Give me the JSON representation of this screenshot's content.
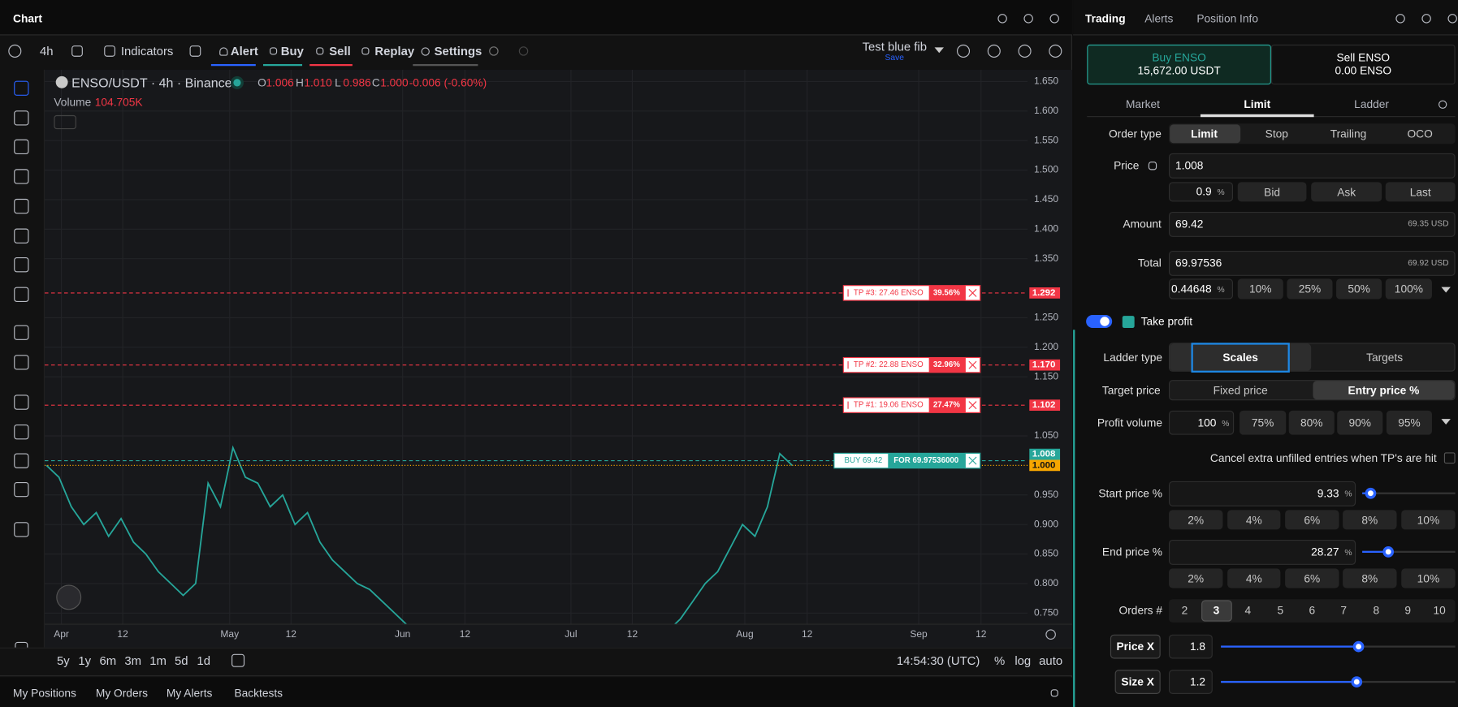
{
  "header": {
    "title": "Chart"
  },
  "toolbar": {
    "interval": "4h",
    "indicators": "Indicators",
    "alert": "Alert",
    "buy": "Buy",
    "sell": "Sell",
    "replay": "Replay",
    "settings": "Settings",
    "layout_name": "Test blue fib",
    "save": "Save"
  },
  "legend": {
    "symbol": "ENSO/USDT · 4h · Binance",
    "ohlc": [
      {
        "key": "O",
        "value": "1.006"
      },
      {
        "key": "H",
        "value": "1.010"
      },
      {
        "key": "L",
        "value": "0.986"
      },
      {
        "key": "C",
        "value": "1.000"
      }
    ],
    "change": "-0.006 (-0.60%)",
    "volume_label": "Volume",
    "volume_value": "104.705K"
  },
  "chart": {
    "ylim": [
      0.709,
      1.67
    ],
    "yticks": [
      {
        "value": 1.65,
        "label": "1.650"
      },
      {
        "value": 1.6,
        "label": "1.600"
      },
      {
        "value": 1.55,
        "label": "1.550"
      },
      {
        "value": 1.5,
        "label": "1.500"
      },
      {
        "value": 1.45,
        "label": "1.450"
      },
      {
        "value": 1.4,
        "label": "1.400"
      },
      {
        "value": 1.35,
        "label": "1.350"
      },
      {
        "value": 1.25,
        "label": "1.250"
      },
      {
        "value": 1.2,
        "label": "1.200"
      },
      {
        "value": 1.15,
        "label": "1.150"
      },
      {
        "value": 1.05,
        "label": "1.050"
      },
      {
        "value": 0.95,
        "label": "0.950"
      },
      {
        "value": 0.9,
        "label": "0.900"
      },
      {
        "value": 0.85,
        "label": "0.850"
      },
      {
        "value": 0.8,
        "label": "0.800"
      },
      {
        "value": 0.75,
        "label": "0.750"
      }
    ],
    "x_labels": [
      "Apr",
      "12",
      "May",
      "12",
      "Jun",
      "12",
      "Jul",
      "12",
      "Aug",
      "12",
      "Sep",
      "12"
    ],
    "closes": [
      1.0,
      0.98,
      0.93,
      0.9,
      0.92,
      0.88,
      0.91,
      0.87,
      0.85,
      0.82,
      0.8,
      0.78,
      0.8,
      0.97,
      0.93,
      1.03,
      0.98,
      0.97,
      0.93,
      0.95,
      0.9,
      0.92,
      0.87,
      0.84,
      0.82,
      0.8,
      0.79,
      0.77,
      0.75,
      0.73,
      0.72,
      0.71,
      0.72,
      0.71,
      0.71,
      0.72,
      0.71,
      0.71,
      0.72,
      0.71,
      0.71,
      0.72,
      0.71,
      0.71,
      0.72,
      0.71,
      0.71,
      0.71,
      0.72,
      0.71,
      0.72,
      0.74,
      0.77,
      0.8,
      0.82,
      0.86,
      0.9,
      0.88,
      0.93,
      1.02,
      1.0
    ],
    "levels": [
      {
        "name": "TP #3: 27.46 ENSO",
        "pct": "39.56%",
        "price": 1.292
      },
      {
        "name": "TP #2: 22.88 ENSO",
        "pct": "32.96%",
        "price": {
          "value": 1.17,
          "label": "1.170"
        }
      },
      {
        "name": "TP #1: 19.06 ENSO",
        "pct": "27.47%",
        "price": 1.102
      }
    ],
    "entry": {
      "name": "BUY 69.42",
      "detail": "FOR 69.97536000",
      "price": 1.008
    },
    "last_price": {
      "value": 1,
      "label": "1.000"
    }
  },
  "range": {
    "periods": [
      "5y",
      "1y",
      "6m",
      "3m",
      "1m",
      "5d",
      "1d"
    ],
    "clock": "14:54:30 (UTC)",
    "scale_options": [
      "%",
      "log",
      "auto"
    ]
  },
  "bottom_tabs": [
    "My Positions",
    "My Orders",
    "My Alerts",
    "Backtests"
  ],
  "trading": {
    "tabs": [
      "Trading",
      "Alerts",
      "Position Info"
    ],
    "buy": {
      "label": "Buy ENSO",
      "amount": "15,672.00 USDT"
    },
    "sell": {
      "label": "Sell ENSO",
      "amount": "0.00 ENSO"
    },
    "modes": [
      "Market",
      "Limit",
      "Ladder"
    ],
    "percent_sign": "%",
    "order_type": {
      "label": "Order type",
      "options": [
        "Limit",
        "Stop",
        "Trailing",
        "OCO"
      ]
    },
    "price": {
      "label": "Price",
      "value": "1.008",
      "pct": "0.9",
      "buttons": [
        "Bid",
        "Ask",
        "Last"
      ]
    },
    "amount": {
      "label": "Amount",
      "value": "69.42",
      "usd": "69.35 USD"
    },
    "total": {
      "label": "Total",
      "value": "69.97536",
      "usd": "69.92 USD",
      "pct": "0.44648",
      "buttons": [
        "10%",
        "25%",
        "50%",
        "100%"
      ]
    },
    "take_profit": "Take profit",
    "ladder_type": {
      "label": "Ladder type",
      "options": [
        "Scales",
        "Targets"
      ]
    },
    "target_price": {
      "label": "Target price",
      "options": [
        "Fixed price",
        "Entry price %"
      ]
    },
    "profit_volume": {
      "label": "Profit volume",
      "value": "100",
      "options": [
        "75%",
        "80%",
        "90%",
        "95%"
      ]
    },
    "cancel_text": "Cancel extra unfilled entries when TP's are hit",
    "start_price": {
      "label": "Start price %",
      "value": "9.33",
      "presets": [
        "2%",
        "4%",
        "6%",
        "8%",
        "10%"
      ]
    },
    "end_price": {
      "label": "End price %",
      "value": "28.27",
      "presets": [
        "2%",
        "4%",
        "6%",
        "8%",
        "10%"
      ]
    },
    "orders": {
      "label": "Orders #",
      "options": [
        "2",
        "3",
        "4",
        "5",
        "6",
        "7",
        "8",
        "9",
        "10"
      ]
    },
    "price_x": {
      "label": "Price X",
      "value": "1.8"
    },
    "size_x": {
      "label": "Size X",
      "value": "1.2"
    }
  }
}
